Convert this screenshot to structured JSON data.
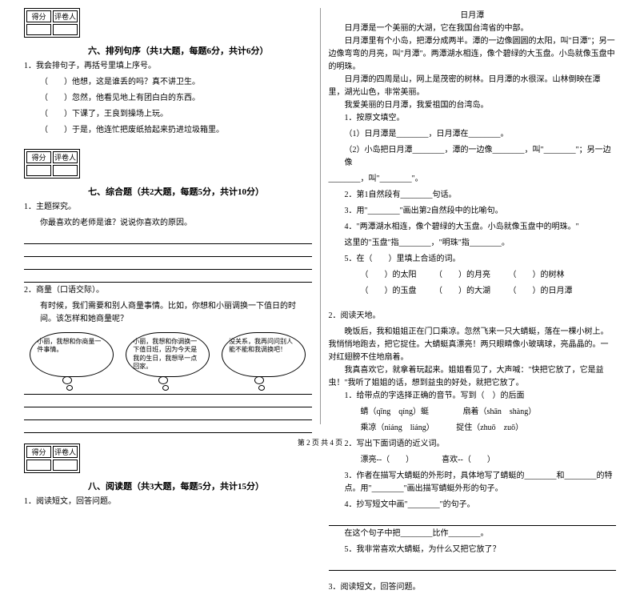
{
  "scoreHeader": {
    "left": "得分",
    "right": "评卷人"
  },
  "section6": {
    "title": "六、排列句序（共1大题，每题6分，共计6分）",
    "q1": "1．我会排句子，再括号里填上序号。",
    "items": [
      "（　　）他想，这是谁丢的吗？真不讲卫生。",
      "（　　）忽然，他看见地上有团白白的东西。",
      "（　　）下课了，王良到操场上玩。",
      "（　　）于是，他连忙把废纸拾起来扔进垃圾箱里。"
    ]
  },
  "section7": {
    "title": "七、综合题（共2大题，每题5分，共计10分）",
    "q1": {
      "title": "1．主题探究。",
      "text": "你最喜欢的老师是谁？说说你喜欢的原因。"
    },
    "q2": {
      "title": "2．商量（口语交际）。",
      "text": "有时候，我们需要和别人商量事情。比如，你想和小丽调换一下值日的时间。该怎样和她商量呢？",
      "bubbles": [
        "小丽，我想和你商量一件事情。",
        "小丽，我想和你调换一下值日班，因为今天是我的生日，我想早一点回家。",
        "没关系，我再问问别人能不能和我调换吧！"
      ]
    }
  },
  "section8": {
    "title": "八、阅读题（共3大题，每题5分，共计15分）",
    "q1": "1．阅读短文，回答问题。"
  },
  "right": {
    "title": "日月潭",
    "paras": [
      "日月潭是一个美丽的大湖，它在我国台湾省的中部。",
      "日月潭里有个小岛，把潭分成两半。潭的一边像圆圆的太阳，叫\"日潭\"；另一边像弯弯的月亮，叫\"月潭\"。两潭湖水相连，像个碧绿的大玉盘。小岛就像玉盘中的明珠。",
      "日月潭的四周是山，网上是茂密的树林。日月潭的水很深。山林倒映在潭里，湖光山色，非常美丽。",
      "我爱美丽的日月潭，我爱祖国的台湾岛。"
    ],
    "q1": {
      "head": "1．按原文填空。",
      "l1": "（1）日月潭是________，日月潭在________。",
      "l2a": "（2）小岛把日月潭________，潭的一边像________，叫\"________\"；另一边像",
      "l2b": "________，叫\"________\"。"
    },
    "q2": "2．第1自然段有________句话。",
    "q3": "3．用\"________\"画出第2自然段中的比喻句。",
    "q4": {
      "head": "4．\"两潭湖水相连，像个碧绿的大玉盘。小岛就像玉盘中的明珠。\"",
      "line": "这里的\"玉盘\"指________，\"明珠\"指________。"
    },
    "q5": {
      "head": "5．在（　　）里填上合适的词。",
      "rows": [
        [
          "（　　）的太阳",
          "（　　）的月亮",
          "（　　）的树林"
        ],
        [
          "（　　）的玉盘",
          "（　　）的大湖",
          "（　　）的日月潭"
        ]
      ]
    },
    "part2": {
      "head": "2．阅读天地。",
      "paras": [
        "晚饭后，我和姐姐正在门口乘凉。忽然飞来一只大蜻蜓，落在一棵小树上。我悄悄地跑去，把它捉住。大蜻蜓真漂亮！两只眼睛像小玻璃球，亮晶晶的。一对红翅膀不住地扇着。",
        "我真喜欢它，就拿着玩起来。姐姐看见了，大声喊：\"快把它放了，它是益虫！\"我听了姐姐的话，想到益虫的好处，就把它放了。"
      ],
      "q1": {
        "head": "1．给带点的字选择正确的音节。写到（　）的后面",
        "rows": [
          [
            "蜻（qīng　qíng）蜓",
            "扇着（shān　shàng）"
          ],
          [
            "乘凉（niáng　liáng）",
            "捉住（zhuō　zuō）"
          ]
        ]
      },
      "q2": {
        "head": "2．写出下面词语的近义词。",
        "line": "漂亮--（　　）　　　　喜欢--（　　）"
      },
      "q3": "3．作者在描写大蜻蜓的外形时，具体地写了蜻蜓的________和________的特点。用\"________\"画出描写蜻蜓外形的句子。",
      "q4": {
        "head": "4．抄写短文中画\"________\"的句子。",
        "line2": "在这个句子中把________比作________。"
      },
      "q5": "5．我非常喜欢大蜻蜓，为什么又把它放了？"
    },
    "part3": "3．阅读短文，回答问题。"
  },
  "footer": "第 2 页 共 4 页"
}
